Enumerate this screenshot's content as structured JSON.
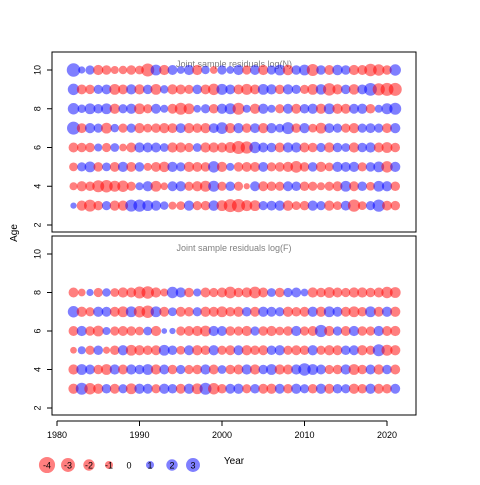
{
  "chart_data": {
    "type": "scatter",
    "subtype": "bubble-residuals",
    "y_axis_label": "Age",
    "x_axis_label": "Year",
    "x_range": [
      1980,
      2021
    ],
    "x_ticks": [
      1980,
      1990,
      2000,
      2010,
      2020
    ],
    "y_range": [
      2,
      10
    ],
    "y_ticks": [
      2,
      4,
      6,
      8,
      10
    ],
    "colors": {
      "positive": "#0000ff",
      "negative": "#ff0000",
      "frame": "#000000",
      "title": "#808080"
    },
    "bubble_alpha": 0.5,
    "years": [
      1982,
      1983,
      1984,
      1985,
      1986,
      1987,
      1988,
      1989,
      1990,
      1991,
      1992,
      1993,
      1994,
      1995,
      1996,
      1997,
      1998,
      1999,
      2000,
      2001,
      2002,
      2003,
      2004,
      2005,
      2006,
      2007,
      2008,
      2009,
      2010,
      2011,
      2012,
      2013,
      2014,
      2015,
      2016,
      2017,
      2018,
      2019,
      2020,
      2021
    ],
    "panels": [
      {
        "title": "Joint sample residuals log(N)",
        "ages": [
          3,
          4,
          5,
          6,
          7,
          8,
          9,
          10
        ],
        "residuals": {
          "10": [
            2.8,
            0.8,
            1.3,
            -1.6,
            -1.4,
            -1.0,
            -1.1,
            -1.4,
            -1.2,
            -2.6,
            1.8,
            -1.6,
            1.5,
            0.9,
            1.6,
            -1.6,
            1.1,
            -0.9,
            1.3,
            0.9,
            1.6,
            -1.3,
            1.5,
            -1.6,
            1.3,
            1.8,
            -1.7,
            1.4,
            1.8,
            -2.2,
            1.4,
            -1.5,
            1.7,
            1.4,
            -1.6,
            -1.5,
            -2.4,
            -2.0,
            -1.4,
            2.0
          ],
          "9": [
            2.0,
            -1.5,
            -1.4,
            1.3,
            1.5,
            -1.8,
            -1.5,
            1.6,
            -1.6,
            1.4,
            -1.8,
            1.1,
            -1.6,
            -1.5,
            -1.3,
            1.4,
            -1.5,
            -2.0,
            1.9,
            1.5,
            -1.5,
            -1.9,
            -1.5,
            1.8,
            1.6,
            -1.4,
            1.6,
            1.3,
            -1.3,
            -1.8,
            1.7,
            -2.4,
            -1.6,
            1.4,
            -1.7,
            1.5,
            2.5,
            -2.3,
            -2.6,
            -2.6
          ],
          "8": [
            2.0,
            1.1,
            1.8,
            1.4,
            1.8,
            -1.6,
            1.3,
            1.6,
            -1.8,
            -1.3,
            1.5,
            1.0,
            -1.5,
            -2.2,
            -1.8,
            0.9,
            1.3,
            -1.4,
            1.6,
            1.9,
            -2.2,
            1.0,
            -1.6,
            1.6,
            1.0,
            -1.3,
            1.5,
            -1.5,
            1.4,
            1.6,
            -1.6,
            1.8,
            -1.6,
            -1.5,
            1.5,
            1.6,
            -1.4,
            1.0,
            1.9,
            2.2
          ],
          "7": [
            2.6,
            -1.5,
            1.6,
            1.3,
            -1.8,
            1.1,
            -1.3,
            1.3,
            -1.6,
            -1.2,
            -1.4,
            -1.6,
            -1.5,
            1.5,
            -1.6,
            -1.4,
            -1.6,
            1.5,
            2.1,
            -1.6,
            1.6,
            -1.4,
            1.5,
            -1.6,
            1.6,
            1.2,
            2.2,
            -1.4,
            1.6,
            -1.2,
            -1.8,
            1.5,
            1.3,
            -1.3,
            -1.6,
            1.3,
            1.5,
            1.3,
            -1.5,
            1.6
          ],
          "6": [
            -1.5,
            -1.4,
            -1.4,
            1.0,
            -1.3,
            1.2,
            -0.9,
            -1.5,
            1.6,
            1.5,
            1.5,
            1.2,
            -1.6,
            -1.6,
            -1.3,
            1.2,
            -1.6,
            -1.6,
            -1.5,
            -1.9,
            -2.6,
            -2.3,
            2.0,
            1.5,
            1.4,
            -1.5,
            1.6,
            1.6,
            -1.5,
            -1.4,
            1.3,
            -1.6,
            1.4,
            1.2,
            -1.6,
            1.4,
            1.6,
            -1.5,
            -1.8,
            -1.4
          ],
          "5": [
            -1.2,
            1.3,
            1.8,
            -1.4,
            1.2,
            -1.5,
            1.6,
            -1.5,
            1.4,
            -1.0,
            -1.5,
            -1.7,
            1.6,
            1.3,
            -1.6,
            -1.5,
            -1.4,
            2.0,
            -1.6,
            1.0,
            -1.4,
            -1.5,
            -1.5,
            1.5,
            -1.3,
            -1.4,
            -1.6,
            -2.1,
            -1.4,
            1.4,
            -1.6,
            -1.2,
            1.6,
            1.5,
            1.6,
            -1.3,
            1.4,
            1.8,
            -2.0,
            1.6
          ],
          "4": [
            -1.0,
            -1.6,
            -1.4,
            -2.2,
            -2.4,
            -1.9,
            -2.0,
            -1.3,
            1.0,
            1.6,
            -1.8,
            -0.9,
            1.5,
            1.6,
            -1.3,
            -1.6,
            -1.9,
            1.9,
            -1.3,
            1.4,
            -1.3,
            -0.6,
            1.5,
            -1.5,
            -1.4,
            -1.3,
            1.5,
            1.4,
            -1.4,
            -1.3,
            -1.0,
            -1.3,
            -1.5,
            1.8,
            -1.5,
            1.4,
            -1.2,
            1.8,
            1.6,
            -1.4
          ],
          "3": [
            0.6,
            -1.6,
            -2.2,
            -1.4,
            1.3,
            -1.6,
            -1.6,
            2.2,
            2.3,
            1.8,
            1.6,
            1.1,
            -1.0,
            -1.2,
            1.6,
            -1.3,
            -1.4,
            1.7,
            -1.8,
            -2.6,
            -2.7,
            -1.9,
            -1.8,
            1.3,
            1.5,
            1.6,
            -1.7,
            -1.2,
            -1.4,
            1.6,
            1.3,
            -1.6,
            -1.2,
            1.5,
            -2.3,
            -1.2,
            1.3,
            2.3,
            -1.5,
            -1.4
          ]
        }
      },
      {
        "title": "Joint sample residuals log(F)",
        "ages": [
          3,
          4,
          5,
          6,
          7,
          8
        ],
        "residuals": {
          "8": [
            -1.5,
            -0.9,
            0.8,
            -1.3,
            1.1,
            -1.2,
            -1.6,
            -1.5,
            -2.2,
            -2.4,
            -1.6,
            -1.0,
            2.0,
            1.6,
            -1.4,
            1.0,
            -1.5,
            -1.3,
            -1.5,
            -2.1,
            -1.4,
            -1.6,
            -2.1,
            -1.5,
            1.2,
            -1.4,
            1.3,
            1.5,
            0.9,
            -1.6,
            -1.4,
            -1.8,
            -1.5,
            -1.3,
            -1.6,
            -1.6,
            -1.4,
            -1.5,
            -2.0,
            -1.8
          ],
          "7": [
            2.0,
            -1.6,
            -1.3,
            1.6,
            1.5,
            -1.5,
            -1.8,
            1.8,
            -2.0,
            -2.4,
            1.8,
            -1.5,
            1.2,
            -1.5,
            -1.4,
            1.3,
            -1.6,
            -1.5,
            -1.8,
            -1.4,
            -1.6,
            1.4,
            -1.5,
            1.6,
            1.5,
            1.3,
            -1.6,
            -1.4,
            -1.5,
            1.6,
            -1.6,
            1.8,
            1.5,
            -1.5,
            -1.8,
            -1.4,
            1.8,
            -1.5,
            1.6,
            -1.6
          ],
          "6": [
            -1.5,
            1.6,
            -1.4,
            -1.8,
            1.0,
            -1.3,
            -1.5,
            -1.4,
            -1.2,
            1.2,
            -1.6,
            0.5,
            0.6,
            -1.3,
            -1.5,
            -1.6,
            -1.8,
            1.6,
            1.5,
            -1.4,
            -1.3,
            -1.6,
            1.3,
            -1.4,
            -1.6,
            -1.2,
            -1.4,
            1.6,
            -1.3,
            -1.5,
            2.3,
            -1.6,
            1.3,
            -1.5,
            1.6,
            -1.4,
            -1.3,
            1.6,
            -1.5,
            -1.6
          ],
          "5": [
            -0.7,
            1.0,
            -1.3,
            1.4,
            -0.8,
            -1.4,
            1.6,
            -1.8,
            -1.6,
            -1.4,
            -1.5,
            1.8,
            1.4,
            -1.2,
            1.5,
            -1.6,
            -1.4,
            1.6,
            -1.3,
            -1.5,
            1.5,
            -1.6,
            -1.4,
            -1.5,
            1.4,
            1.6,
            -1.3,
            -1.5,
            -1.4,
            1.6,
            -1.3,
            -1.6,
            -1.5,
            1.4,
            1.5,
            -1.6,
            -1.3,
            2.2,
            -1.9,
            -1.6
          ],
          "4": [
            -1.6,
            1.8,
            1.5,
            -1.4,
            -1.8,
            1.6,
            -1.5,
            1.6,
            1.4,
            1.8,
            -1.6,
            1.5,
            -1.4,
            1.3,
            -1.3,
            -1.4,
            1.6,
            -1.5,
            1.2,
            -1.4,
            -1.5,
            1.6,
            -1.6,
            1.4,
            1.8,
            -1.6,
            -1.5,
            1.6,
            2.4,
            1.8,
            1.5,
            -1.3,
            -1.4,
            1.6,
            -1.8,
            -1.4,
            1.5,
            -1.6,
            1.4,
            -1.5
          ],
          "3": [
            -1.6,
            2.2,
            -2.0,
            -1.6,
            1.4,
            -1.5,
            1.3,
            -1.8,
            1.6,
            1.5,
            -1.3,
            1.6,
            1.4,
            -1.5,
            1.6,
            -1.8,
            2.2,
            -2.0,
            -1.4,
            1.5,
            1.6,
            -1.3,
            1.4,
            -1.5,
            -1.6,
            1.5,
            -1.4,
            1.6,
            1.3,
            -1.4,
            1.6,
            -1.5,
            1.4,
            1.3,
            -1.6,
            -1.4,
            1.6,
            -1.5,
            -1.4,
            1.5
          ]
        }
      }
    ],
    "legend": {
      "placement": "bottom-left",
      "values": [
        -4,
        -3,
        -2,
        -1,
        0,
        1,
        2,
        3
      ]
    }
  }
}
